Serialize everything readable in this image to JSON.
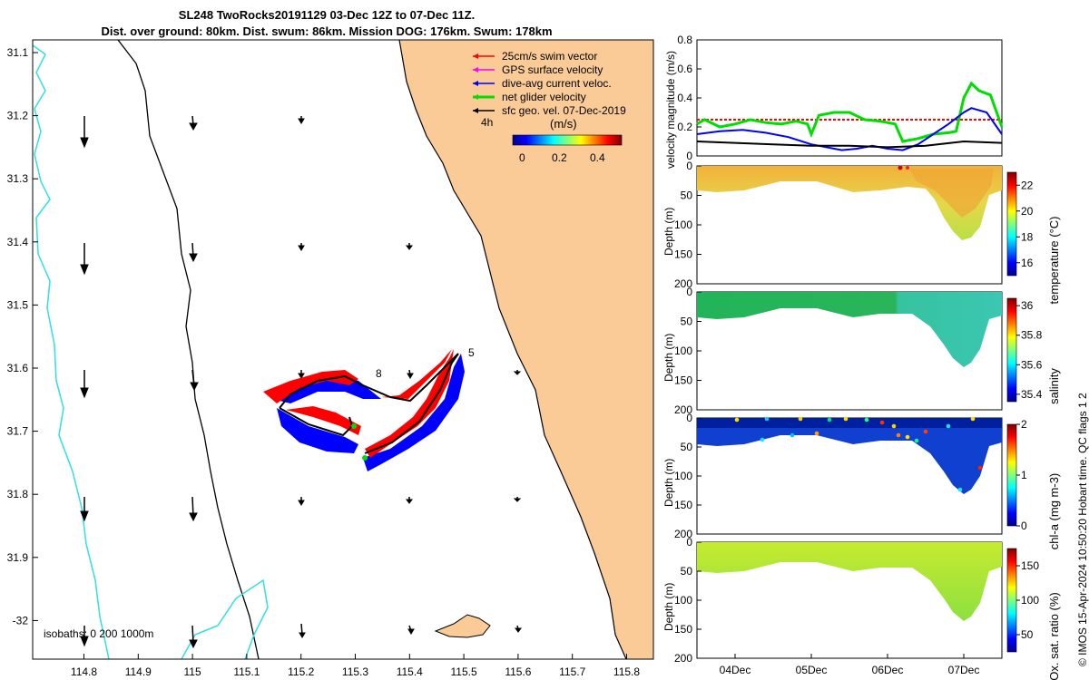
{
  "map": {
    "title_line1": "SL248 TwoRocks20191129 03-Dec 12Z to 07-Dec 11Z.",
    "title_line2": "Dist. over ground: 80km. Dist. swum: 86km. Mission DOG: 176km. Swum: 178km",
    "lat_ticks": [
      "31.1",
      "31.2",
      "31.3",
      "31.4",
      "31.5",
      "31.6",
      "31.7",
      "31.8",
      "31.9",
      "-32"
    ],
    "lon_ticks": [
      "114.8",
      "114.9",
      "115",
      "115.1",
      "115.2",
      "115.3",
      "115.4",
      "115.5",
      "115.6",
      "115.7",
      "115.8"
    ],
    "legend": [
      {
        "label": "25cm/s swim vector",
        "color": "#ff0000"
      },
      {
        "label": "GPS surface velocity",
        "color": "#ff00ff"
      },
      {
        "label": "dive-avg current veloc.",
        "color": "#0000ff"
      },
      {
        "label": "net glider velocity",
        "color": "#00dd00"
      },
      {
        "label": "sfc geo. vel. 07-Dec-2019",
        "color": "#000000"
      }
    ],
    "legend_time": "4h",
    "colorbar_label": "(m/s)",
    "colorbar_ticks": [
      "0",
      "0.2",
      "0.4"
    ],
    "isobath_label": "isobaths: 0   200  1000m",
    "track_labels": [
      "8",
      "5"
    ]
  },
  "chart_data": [
    {
      "type": "line",
      "ylabel": "velocity magnitude (m/s)",
      "ylim": [
        0,
        0.8
      ],
      "yticks": [
        "0",
        "0.2",
        "0.4",
        "0.6",
        "0.8"
      ],
      "xlim_days": [
        3.5,
        7.5
      ],
      "series": [
        {
          "name": "swim vector",
          "color": "#ff0000",
          "x": [
            3.5,
            4,
            4.5,
            5,
            5.5,
            6,
            6.5,
            7,
            7.5
          ],
          "values": [
            0.25,
            0.25,
            0.25,
            0.25,
            0.25,
            0.25,
            0.25,
            0.25,
            0.25
          ]
        },
        {
          "name": "net glider velocity",
          "color": "#00dd00",
          "x": [
            3.5,
            3.6,
            3.8,
            4.0,
            4.2,
            4.4,
            4.6,
            4.8,
            4.95,
            5.0,
            5.1,
            5.3,
            5.5,
            5.7,
            5.9,
            6.1,
            6.2,
            6.4,
            6.6,
            6.8,
            6.9,
            7.0,
            7.1,
            7.2,
            7.35,
            7.5
          ],
          "values": [
            0.22,
            0.25,
            0.2,
            0.22,
            0.25,
            0.23,
            0.22,
            0.24,
            0.22,
            0.15,
            0.28,
            0.3,
            0.3,
            0.25,
            0.24,
            0.22,
            0.1,
            0.12,
            0.15,
            0.16,
            0.17,
            0.4,
            0.5,
            0.45,
            0.42,
            0.2
          ]
        },
        {
          "name": "dive-avg current veloc.",
          "color": "#0000ff",
          "x": [
            3.5,
            3.8,
            4.1,
            4.4,
            4.7,
            5.0,
            5.2,
            5.4,
            5.6,
            5.8,
            6.0,
            6.2,
            6.4,
            6.6,
            6.8,
            7.0,
            7.1,
            7.3,
            7.5
          ],
          "values": [
            0.15,
            0.17,
            0.18,
            0.16,
            0.13,
            0.08,
            0.06,
            0.04,
            0.05,
            0.07,
            0.05,
            0.04,
            0.08,
            0.15,
            0.22,
            0.3,
            0.33,
            0.3,
            0.15
          ]
        },
        {
          "name": "sfc geo. vel.",
          "color": "#000000",
          "x": [
            3.5,
            4.0,
            4.5,
            5.0,
            5.5,
            6.0,
            6.5,
            7.0,
            7.5
          ],
          "values": [
            0.1,
            0.09,
            0.08,
            0.07,
            0.07,
            0.06,
            0.07,
            0.1,
            0.09
          ]
        }
      ]
    },
    {
      "type": "heatmap",
      "ylabel": "Depth (m)",
      "yticks": [
        "0",
        "50",
        "100",
        "150",
        "200"
      ],
      "colorbar_label": "temperature (°C)",
      "colorbar_ticks": [
        "16",
        "18",
        "20",
        "22"
      ]
    },
    {
      "type": "heatmap",
      "ylabel": "Depth (m)",
      "yticks": [
        "0",
        "50",
        "100",
        "150",
        "200"
      ],
      "colorbar_label": "salinity",
      "colorbar_ticks": [
        "35.4",
        "35.6",
        "35.8",
        "36"
      ]
    },
    {
      "type": "heatmap",
      "ylabel": "Depth (m)",
      "yticks": [
        "0",
        "50",
        "100",
        "150",
        "200"
      ],
      "colorbar_label": "chl-a (mg m-3)",
      "colorbar_ticks": [
        "0",
        "1",
        "2"
      ]
    },
    {
      "type": "heatmap",
      "ylabel": "Depth (m)",
      "yticks": [
        "0",
        "50",
        "100",
        "150",
        "200"
      ],
      "colorbar_label": "Ox. sat. ratio (%)",
      "colorbar_ticks": [
        "50",
        "100",
        "150"
      ],
      "xticks": [
        "04Dec",
        "05Dec",
        "06Dec",
        "07Dec"
      ]
    }
  ],
  "stamp": "© IMOS 15-Apr-2024 10:50:20 Hobart time. QC flags 1  2"
}
